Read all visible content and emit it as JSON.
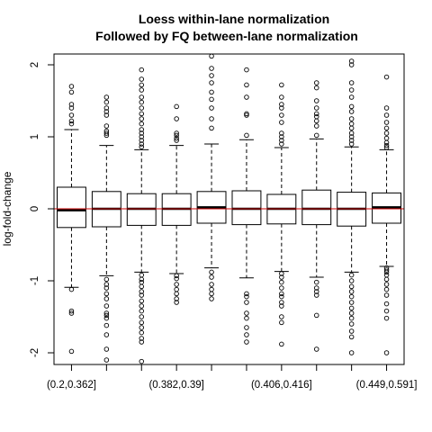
{
  "chart_data": {
    "type": "boxplot",
    "title": "Loess within-lane normalization",
    "subtitle": "Followed by FQ between-lane normalization",
    "ylabel": "log-fold-change",
    "xlabel": "",
    "ylim": [
      -2.15,
      2.15
    ],
    "yticks": [
      -2,
      -1,
      0,
      1,
      2
    ],
    "categories": [
      "(0.2,0.362]",
      "",
      "",
      "(0.382,0.39]",
      "",
      "",
      "(0.406,0.416]",
      "",
      "",
      "(0.449,0.591]"
    ],
    "reference_line": {
      "y": 0,
      "color": "#cc0000"
    },
    "boxes": [
      {
        "q1": -0.26,
        "median": -0.02,
        "q3": 0.3,
        "whisker_low": -1.09,
        "whisker_high": 1.1,
        "outliers": [
          1.7,
          1.62,
          1.45,
          1.4,
          1.3,
          1.22,
          1.18,
          -1.12,
          -1.42,
          -1.45,
          -1.98
        ]
      },
      {
        "q1": -0.25,
        "median": 0.0,
        "q3": 0.24,
        "whisker_low": -0.93,
        "whisker_high": 0.88,
        "outliers": [
          1.55,
          1.48,
          1.4,
          1.35,
          1.3,
          1.15,
          1.08,
          1.05,
          1.02,
          -0.98,
          -1.05,
          -1.1,
          -1.18,
          -1.25,
          -1.35,
          -1.45,
          -1.48,
          -1.52,
          -1.62,
          -1.75,
          -1.95,
          -2.1
        ]
      },
      {
        "q1": -0.23,
        "median": 0.0,
        "q3": 0.21,
        "whisker_low": -0.88,
        "whisker_high": 0.82,
        "outliers": [
          1.93,
          1.8,
          1.72,
          1.65,
          1.55,
          1.48,
          1.4,
          1.32,
          1.25,
          1.18,
          1.1,
          1.05,
          1.0,
          0.95,
          0.9,
          0.86,
          -0.92,
          -0.98,
          -1.02,
          -1.08,
          -1.15,
          -1.2,
          -1.28,
          -1.35,
          -1.42,
          -1.5,
          -1.58,
          -1.65,
          -1.72,
          -1.8,
          -1.85,
          -2.12
        ]
      },
      {
        "q1": -0.23,
        "median": 0.0,
        "q3": 0.21,
        "whisker_low": -0.9,
        "whisker_high": 0.88,
        "outliers": [
          1.42,
          1.25,
          1.05,
          1.02,
          0.98,
          0.95,
          -0.93,
          -0.97,
          -1.05,
          -1.12,
          -1.18,
          -1.25,
          -1.3
        ]
      },
      {
        "q1": -0.2,
        "median": 0.02,
        "q3": 0.24,
        "whisker_low": -0.82,
        "whisker_high": 0.9,
        "outliers": [
          2.12,
          1.95,
          1.85,
          1.75,
          1.62,
          1.52,
          1.4,
          1.25,
          1.12,
          -0.88,
          -0.95,
          -1.05,
          -1.12,
          -1.18,
          -1.25
        ]
      },
      {
        "q1": -0.22,
        "median": 0.0,
        "q3": 0.25,
        "whisker_low": -0.96,
        "whisker_high": 0.96,
        "outliers": [
          1.93,
          1.72,
          1.55,
          1.32,
          1.3,
          1.02,
          -1.18,
          -1.22,
          -1.3,
          -1.45,
          -1.52,
          -1.65,
          -1.75,
          -1.85
        ]
      },
      {
        "q1": -0.21,
        "median": 0.0,
        "q3": 0.2,
        "whisker_low": -0.87,
        "whisker_high": 0.85,
        "outliers": [
          1.72,
          1.55,
          1.45,
          1.4,
          1.3,
          1.2,
          1.05,
          1.0,
          0.95,
          0.9,
          -0.9,
          -0.95,
          -1.02,
          -1.1,
          -1.18,
          -1.22,
          -1.3,
          -1.35,
          -1.5,
          -1.58,
          -1.88
        ]
      },
      {
        "q1": -0.22,
        "median": 0.0,
        "q3": 0.26,
        "whisker_low": -0.95,
        "whisker_high": 0.97,
        "outliers": [
          1.75,
          1.68,
          1.5,
          1.4,
          1.32,
          1.28,
          1.22,
          1.15,
          1.02,
          -1.02,
          -1.1,
          -1.15,
          -1.2,
          -1.48,
          -1.95
        ]
      },
      {
        "q1": -0.24,
        "median": 0.0,
        "q3": 0.23,
        "whisker_low": -0.88,
        "whisker_high": 0.86,
        "outliers": [
          2.05,
          2.0,
          1.75,
          1.65,
          1.55,
          1.42,
          1.35,
          1.25,
          1.18,
          1.12,
          1.05,
          1.0,
          0.95,
          0.9,
          -0.92,
          -1.0,
          -1.08,
          -1.15,
          -1.22,
          -1.3,
          -1.38,
          -1.45,
          -1.52,
          -1.6,
          -1.7,
          -1.78,
          -2.0
        ]
      },
      {
        "q1": -0.2,
        "median": 0.02,
        "q3": 0.22,
        "whisker_low": -0.8,
        "whisker_high": 0.82,
        "outliers": [
          1.83,
          1.4,
          1.3,
          1.2,
          1.12,
          1.05,
          0.98,
          0.92,
          0.88,
          0.85,
          -0.82,
          -0.85,
          -0.88,
          -0.92,
          -0.98,
          -1.05,
          -1.12,
          -1.2,
          -1.32,
          -1.42,
          -1.52,
          -2.0
        ]
      }
    ]
  }
}
